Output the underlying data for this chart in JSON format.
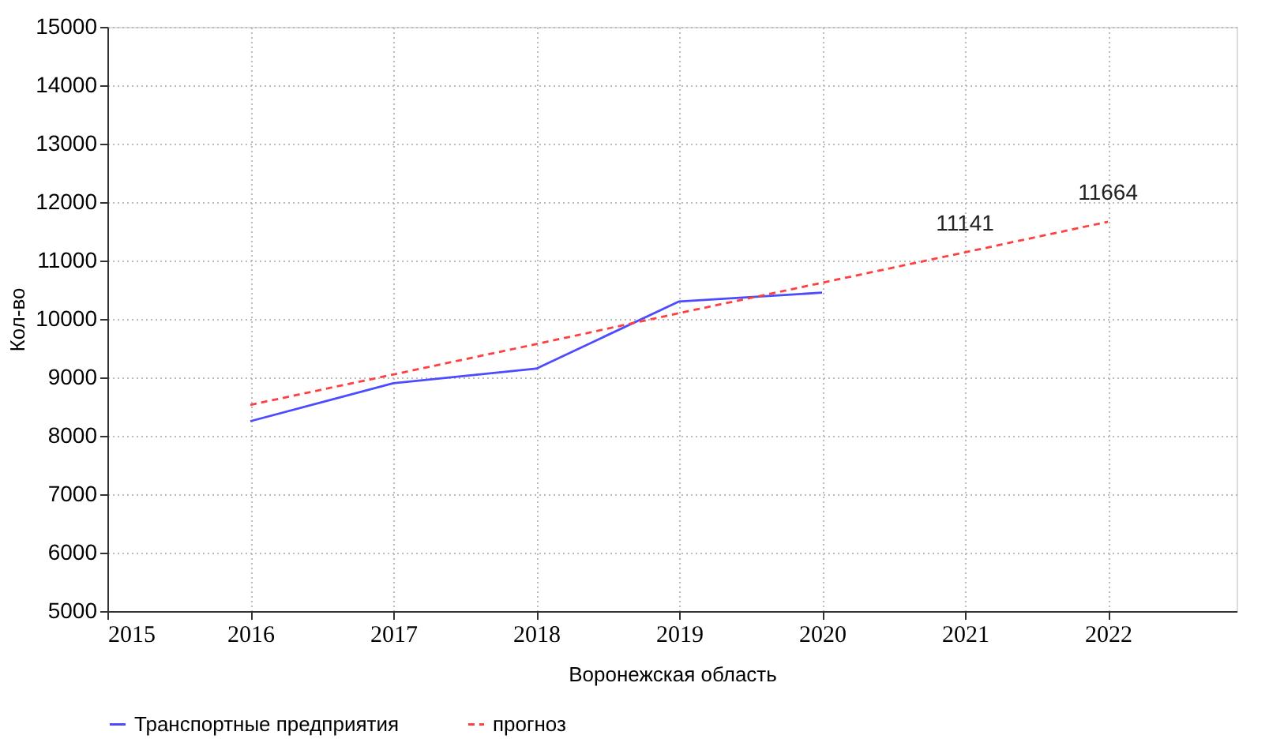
{
  "chart_data": {
    "type": "line",
    "xlabel": "Воронежская область",
    "ylabel": "Кол-во",
    "x": [
      2016,
      2017,
      2018,
      2019,
      2020
    ],
    "series": [
      {
        "name": "Транспортные предприятия",
        "color": "#4b4bff",
        "line_style": "solid",
        "values": [
          8250,
          8900,
          9150,
          10300,
          10450
        ]
      },
      {
        "name": "прогноз",
        "color": "#ff4040",
        "line_style": "dashed",
        "x": [
          2016,
          2017,
          2018,
          2019,
          2020,
          2021,
          2022
        ],
        "values": [
          8530,
          9050,
          9570,
          10100,
          10620,
          11141,
          11664
        ]
      }
    ],
    "annotations": [
      {
        "text": "11141",
        "x": 2021,
        "y": 11141
      },
      {
        "text": "11664",
        "x": 2022,
        "y": 11664
      }
    ],
    "xlim": [
      2015,
      2022.9
    ],
    "xticks": [
      2015,
      2016,
      2017,
      2018,
      2019,
      2020,
      2021,
      2022
    ],
    "ylim": [
      5000,
      15000
    ],
    "yticks": [
      5000,
      6000,
      7000,
      8000,
      9000,
      10000,
      11000,
      12000,
      13000,
      14000,
      15000
    ],
    "grid": true,
    "legend": "bottom",
    "marker": "none"
  }
}
